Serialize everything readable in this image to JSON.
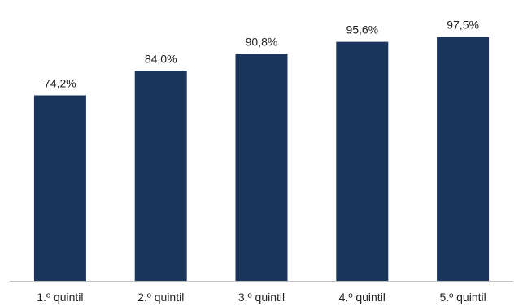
{
  "chart_data": {
    "type": "bar",
    "title": "",
    "xlabel": "",
    "ylabel": "",
    "categories": [
      "1.º quintil",
      "2.º quintil",
      "3.º quintil",
      "4.º quintil",
      "5.º quintil"
    ],
    "values": [
      74.2,
      84.0,
      90.8,
      95.6,
      97.5
    ],
    "data_labels": [
      "74,2%",
      "84,0%",
      "90,8%",
      "95,6%",
      "97,5%"
    ],
    "ylim": [
      0,
      100
    ],
    "grid": false,
    "legend": "none",
    "bar_color": "#1b365d",
    "axis_color": "#bfbfbf"
  }
}
